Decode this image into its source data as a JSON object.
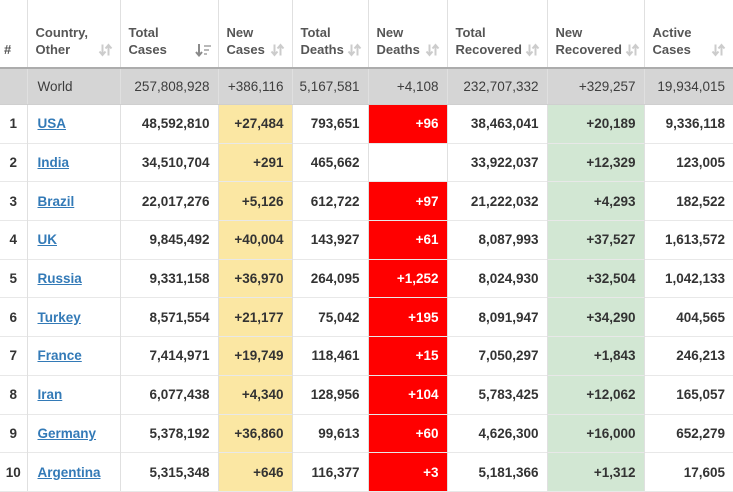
{
  "colors": {
    "new_cases_bg": "#FBE7A3",
    "new_deaths_bg": "#FF0000",
    "new_deaths_text": "#FFFFFF",
    "new_recovered_bg": "#D2E7D3",
    "world_row_bg": "#D5D5D5",
    "link": "#337AB7",
    "header_text": "#565656",
    "number_text": "#333333"
  },
  "table": {
    "headers": [
      {
        "key": "rank",
        "line1": "",
        "line2": "#",
        "sort": "none"
      },
      {
        "key": "country",
        "line1": "Country,",
        "line2": "Other",
        "sort": "both"
      },
      {
        "key": "total_cases",
        "line1": "Total",
        "line2": "Cases",
        "sort": "desc"
      },
      {
        "key": "new_cases",
        "line1": "New",
        "line2": "Cases",
        "sort": "both"
      },
      {
        "key": "total_deaths",
        "line1": "Total",
        "line2": "Deaths",
        "sort": "both"
      },
      {
        "key": "new_deaths",
        "line1": "New",
        "line2": "Deaths",
        "sort": "both"
      },
      {
        "key": "total_recovered",
        "line1": "Total",
        "line2": "Recovered",
        "sort": "both"
      },
      {
        "key": "new_recovered",
        "line1": "New",
        "line2": "Recovered",
        "sort": "both"
      },
      {
        "key": "active_cases",
        "line1": "Active",
        "line2": "Cases",
        "sort": "both"
      }
    ],
    "world_row": {
      "rank": "",
      "country": "World",
      "total_cases": "257,808,928",
      "new_cases": "+386,116",
      "total_deaths": "5,167,581",
      "new_deaths": "+4,108",
      "total_recovered": "232,707,332",
      "new_recovered": "+329,257",
      "active_cases": "19,934,015"
    },
    "rows": [
      {
        "rank": "1",
        "country": "USA",
        "total_cases": "48,592,810",
        "new_cases": "+27,484",
        "total_deaths": "793,651",
        "new_deaths": "+96",
        "total_recovered": "38,463,041",
        "new_recovered": "+20,189",
        "active_cases": "9,336,118"
      },
      {
        "rank": "2",
        "country": "India",
        "total_cases": "34,510,704",
        "new_cases": "+291",
        "total_deaths": "465,662",
        "new_deaths": "",
        "total_recovered": "33,922,037",
        "new_recovered": "+12,329",
        "active_cases": "123,005"
      },
      {
        "rank": "3",
        "country": "Brazil",
        "total_cases": "22,017,276",
        "new_cases": "+5,126",
        "total_deaths": "612,722",
        "new_deaths": "+97",
        "total_recovered": "21,222,032",
        "new_recovered": "+4,293",
        "active_cases": "182,522"
      },
      {
        "rank": "4",
        "country": "UK",
        "total_cases": "9,845,492",
        "new_cases": "+40,004",
        "total_deaths": "143,927",
        "new_deaths": "+61",
        "total_recovered": "8,087,993",
        "new_recovered": "+37,527",
        "active_cases": "1,613,572"
      },
      {
        "rank": "5",
        "country": "Russia",
        "total_cases": "9,331,158",
        "new_cases": "+36,970",
        "total_deaths": "264,095",
        "new_deaths": "+1,252",
        "total_recovered": "8,024,930",
        "new_recovered": "+32,504",
        "active_cases": "1,042,133"
      },
      {
        "rank": "6",
        "country": "Turkey",
        "total_cases": "8,571,554",
        "new_cases": "+21,177",
        "total_deaths": "75,042",
        "new_deaths": "+195",
        "total_recovered": "8,091,947",
        "new_recovered": "+34,290",
        "active_cases": "404,565"
      },
      {
        "rank": "7",
        "country": "France",
        "total_cases": "7,414,971",
        "new_cases": "+19,749",
        "total_deaths": "118,461",
        "new_deaths": "+15",
        "total_recovered": "7,050,297",
        "new_recovered": "+1,843",
        "active_cases": "246,213"
      },
      {
        "rank": "8",
        "country": "Iran",
        "total_cases": "6,077,438",
        "new_cases": "+4,340",
        "total_deaths": "128,956",
        "new_deaths": "+104",
        "total_recovered": "5,783,425",
        "new_recovered": "+12,062",
        "active_cases": "165,057"
      },
      {
        "rank": "9",
        "country": "Germany",
        "total_cases": "5,378,192",
        "new_cases": "+36,860",
        "total_deaths": "99,613",
        "new_deaths": "+60",
        "total_recovered": "4,626,300",
        "new_recovered": "+16,000",
        "active_cases": "652,279"
      },
      {
        "rank": "10",
        "country": "Argentina",
        "total_cases": "5,315,348",
        "new_cases": "+646",
        "total_deaths": "116,377",
        "new_deaths": "+3",
        "total_recovered": "5,181,366",
        "new_recovered": "+1,312",
        "active_cases": "17,605"
      }
    ]
  }
}
